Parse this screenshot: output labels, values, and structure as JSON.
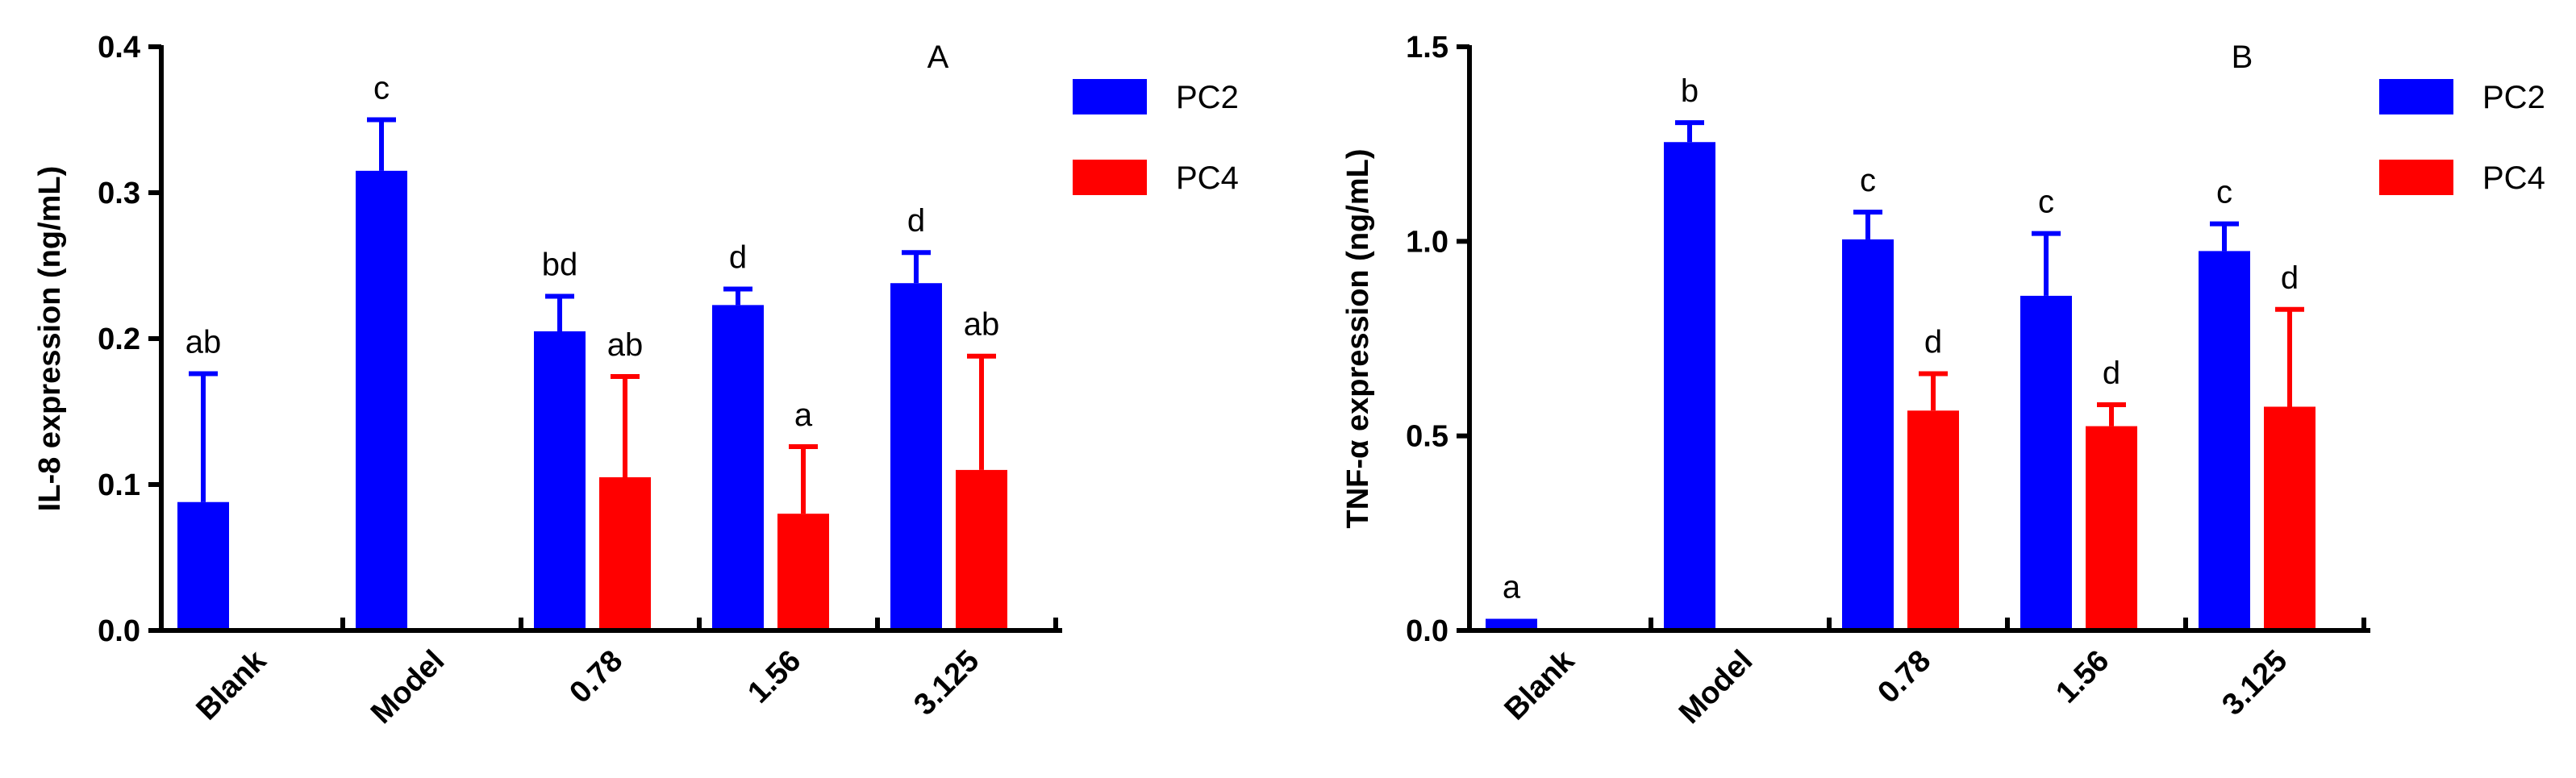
{
  "colors": {
    "PC2": "#0000ff",
    "PC4": "#ff0000",
    "axis": "#000000"
  },
  "chart_data": [
    {
      "type": "bar",
      "panel_label": "A",
      "ylabel": "IL-8 expression  (ng/mL)",
      "ylim": [
        0,
        0.4
      ],
      "yticks": [
        "0.0",
        "0.1",
        "0.2",
        "0.3",
        "0.4"
      ],
      "categories": [
        "Blank",
        "Model",
        "0.78",
        "1.56",
        "3.125"
      ],
      "series": [
        {
          "name": "PC2",
          "values": [
            0.088,
            0.315,
            0.205,
            0.223,
            0.238
          ],
          "errors": [
            0.088,
            0.035,
            0.024,
            0.011,
            0.021
          ],
          "labels": [
            "ab",
            "c",
            "bd",
            "d",
            "d"
          ]
        },
        {
          "name": "PC4",
          "values": [
            null,
            null,
            0.105,
            0.08,
            0.11
          ],
          "errors": [
            null,
            null,
            0.069,
            0.046,
            0.078
          ],
          "labels": [
            "",
            "",
            "ab",
            "a",
            "ab"
          ]
        }
      ],
      "legend": [
        "PC2",
        "PC4"
      ]
    },
    {
      "type": "bar",
      "panel_label": "B",
      "ylabel": "TNF-α expression (ng/mL)",
      "ylim": [
        0,
        1.5
      ],
      "yticks": [
        "0.0",
        "0.5",
        "1.0",
        "1.5"
      ],
      "categories": [
        "Blank",
        "Model",
        "0.78",
        "1.56",
        "3.125"
      ],
      "series": [
        {
          "name": "PC2",
          "values": [
            0.03,
            1.255,
            1.005,
            0.86,
            0.975
          ],
          "errors": [
            0,
            0.05,
            0.07,
            0.16,
            0.07
          ],
          "labels": [
            "a",
            "b",
            "c",
            "c",
            "c"
          ]
        },
        {
          "name": "PC4",
          "values": [
            null,
            null,
            0.565,
            0.525,
            0.575
          ],
          "errors": [
            null,
            null,
            0.095,
            0.055,
            0.25
          ],
          "labels": [
            "",
            "",
            "d",
            "d",
            "d"
          ]
        }
      ],
      "legend": [
        "PC2",
        "PC4"
      ]
    }
  ]
}
